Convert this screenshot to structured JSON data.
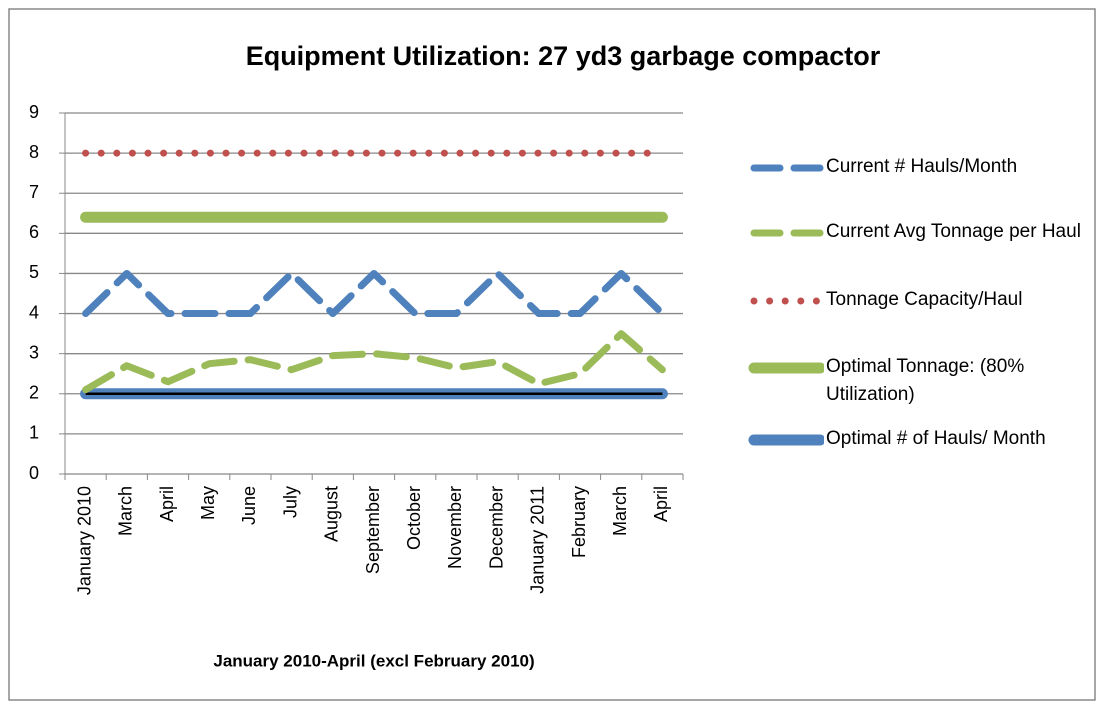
{
  "chart_data": {
    "type": "line",
    "title": "Equipment Utilization: 27 yd3 garbage compactor",
    "x_label": "January 2010-April (excl February 2010)",
    "categories": [
      "January 2010",
      "March",
      "April",
      "May",
      "June",
      "July",
      "August",
      "September",
      "October",
      "November",
      "December",
      "January  2011",
      "February",
      "March",
      "April"
    ],
    "ylim": [
      0,
      9
    ],
    "yticks": [
      0,
      1,
      2,
      3,
      4,
      5,
      6,
      7,
      8,
      9
    ],
    "grid": true,
    "series": [
      {
        "name": "Current #  Hauls/Month",
        "color": "#4f81bd",
        "style": "dash",
        "values": [
          4,
          5,
          4,
          4,
          4,
          5,
          4,
          5,
          4,
          4,
          5,
          4,
          4,
          5,
          4
        ]
      },
      {
        "name": "Current Avg Tonnage per Haul",
        "color": "#9bbb59",
        "style": "dash",
        "values": [
          2.1,
          2.7,
          2.3,
          2.75,
          2.85,
          2.6,
          2.95,
          3.0,
          2.9,
          2.65,
          2.8,
          2.25,
          2.5,
          3.5,
          2.6
        ]
      },
      {
        "name": "Tonnage Capacity/Haul",
        "color": "#c0504d",
        "style": "dot",
        "values": [
          8,
          8,
          8,
          8,
          8,
          8,
          8,
          8,
          8,
          8,
          8,
          8,
          8,
          8,
          8
        ]
      },
      {
        "name": "Optimal Tonnage:  (80% Utilization)",
        "color": "#9bbb59",
        "style": "solid",
        "values": [
          6.4,
          6.4,
          6.4,
          6.4,
          6.4,
          6.4,
          6.4,
          6.4,
          6.4,
          6.4,
          6.4,
          6.4,
          6.4,
          6.4,
          6.4
        ]
      },
      {
        "name": "Optimal # of Hauls/ Month",
        "color": "#4f81bd",
        "style": "solid",
        "values": [
          2,
          2,
          2,
          2,
          2,
          2,
          2,
          2,
          2,
          2,
          2,
          2,
          2,
          2,
          2
        ]
      }
    ]
  }
}
